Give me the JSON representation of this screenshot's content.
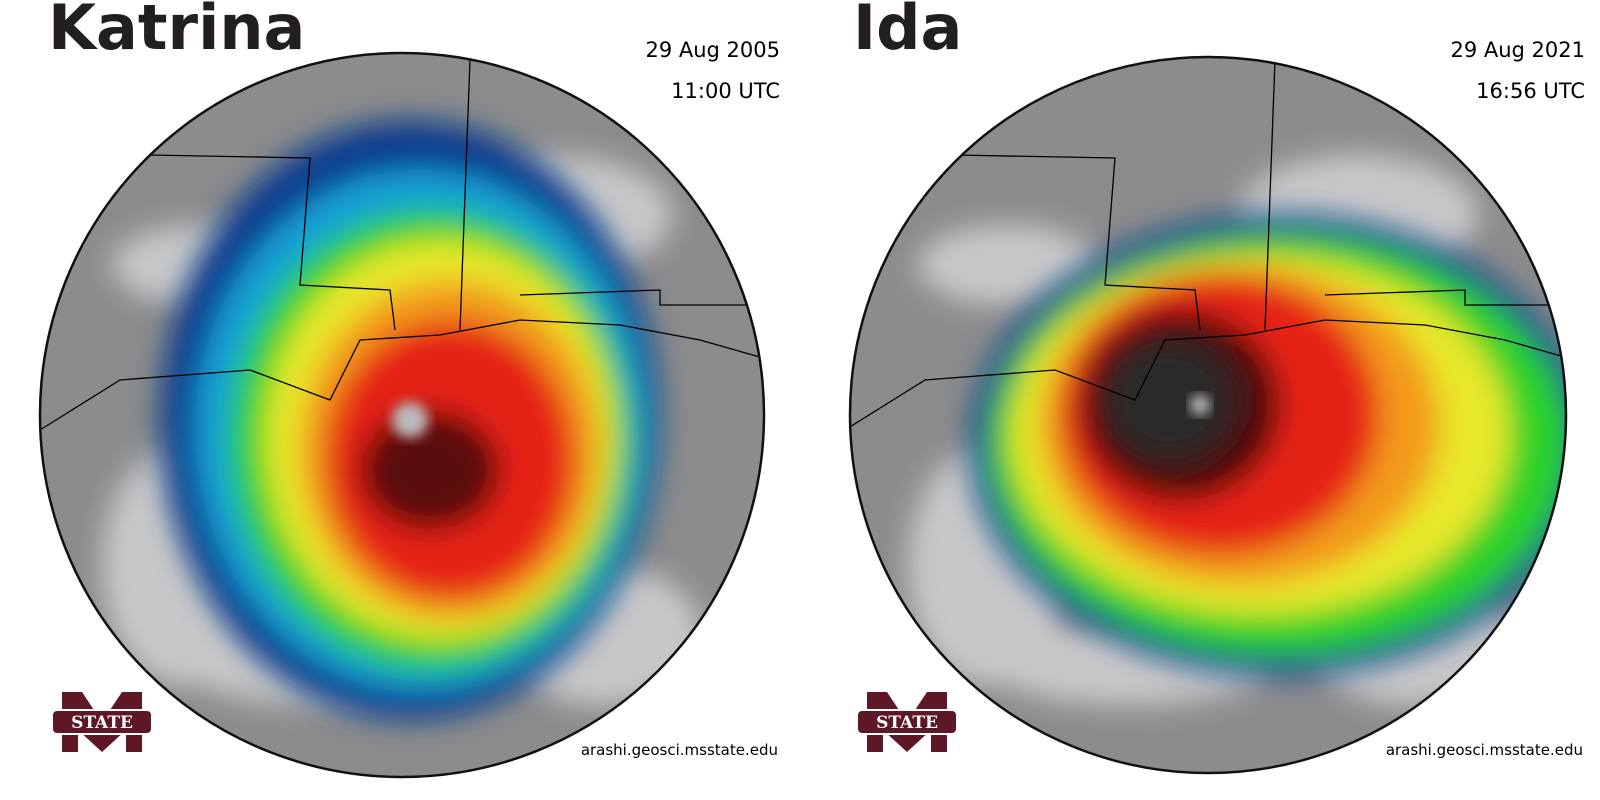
{
  "panels": [
    {
      "title": "Katrina",
      "date": "29 Aug 2005",
      "time": "11:00 UTC",
      "logo": "STATE",
      "credit": "arashi.geosci.msstate.edu"
    },
    {
      "title": "Ida",
      "date": "29 Aug 2021",
      "time": "16:56 UTC",
      "logo": "STATE",
      "credit": "arashi.geosci.msstate.edu"
    }
  ]
}
